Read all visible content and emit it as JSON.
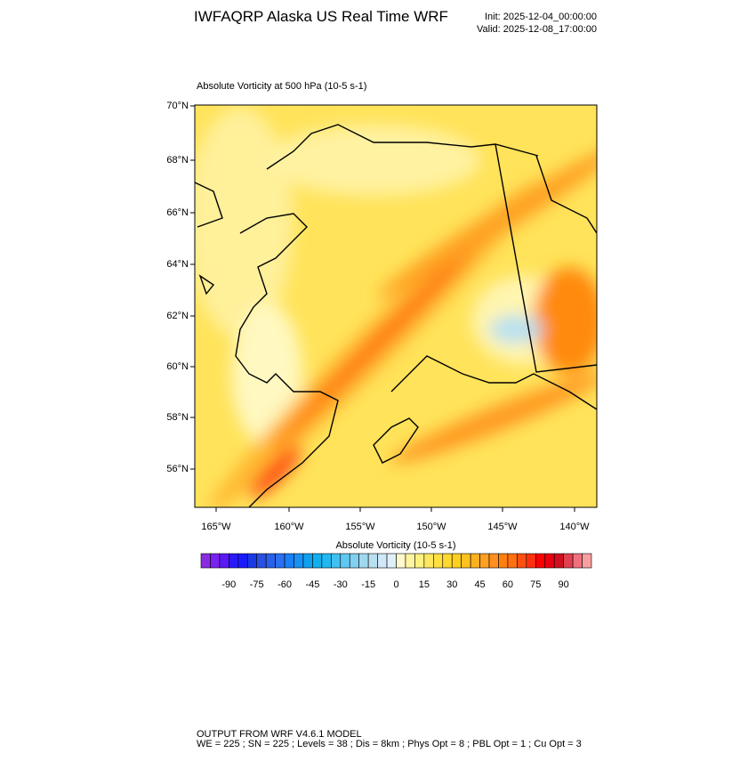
{
  "header": {
    "title": "IWFAQRP Alaska US Real Time WRF",
    "init": "Init: 2025-12-04_00:00:00",
    "valid": "Valid: 2025-12-08_17:00:00"
  },
  "plot": {
    "title": "Absolute Vorticity at 500 hPa   (10-5 s-1)",
    "lat_labels": [
      "70°N",
      "68°N",
      "66°N",
      "64°N",
      "62°N",
      "60°N",
      "58°N",
      "56°N"
    ],
    "lon_labels": [
      "165°W",
      "160°W",
      "155°W",
      "150°W",
      "145°W",
      "140°W"
    ]
  },
  "colorbar": {
    "title": "Absolute Vorticity  (10-5 s-1)",
    "range": [
      -105,
      105
    ],
    "colors": [
      "#8a2be2",
      "#7a22f0",
      "#5b1af5",
      "#2a1afa",
      "#1a1aff",
      "#1a3ae8",
      "#2a50e0",
      "#2a60e8",
      "#2a70f0",
      "#1a80f5",
      "#1a90f5",
      "#10a0f0",
      "#10b0f0",
      "#20b8f0",
      "#40c0f0",
      "#60c8f0",
      "#80d0f0",
      "#a0d8f0",
      "#b8e0f0",
      "#d0e8f8",
      "#e0f0f8",
      "#fffacd",
      "#fff5a0",
      "#fff080",
      "#ffe860",
      "#ffe040",
      "#ffd830",
      "#ffd020",
      "#ffc020",
      "#ffb020",
      "#ffa020",
      "#ff9020",
      "#ff8010",
      "#ff7010",
      "#ff5010",
      "#ff3010",
      "#ff0000",
      "#e80010",
      "#d01020",
      "#e04050",
      "#f07080",
      "#f8a0a0"
    ],
    "labels": [
      -90,
      -75,
      -60,
      -45,
      -30,
      -15,
      0,
      15,
      30,
      45,
      60,
      75,
      90
    ]
  },
  "footer": {
    "line1": "OUTPUT FROM WRF V4.6.1 MODEL",
    "line2": "WE = 225 ; SN = 225 ; Levels = 38 ; Dis = 8km ; Phys Opt = 8 ; PBL Opt = 1 ; Cu Opt = 3"
  }
}
